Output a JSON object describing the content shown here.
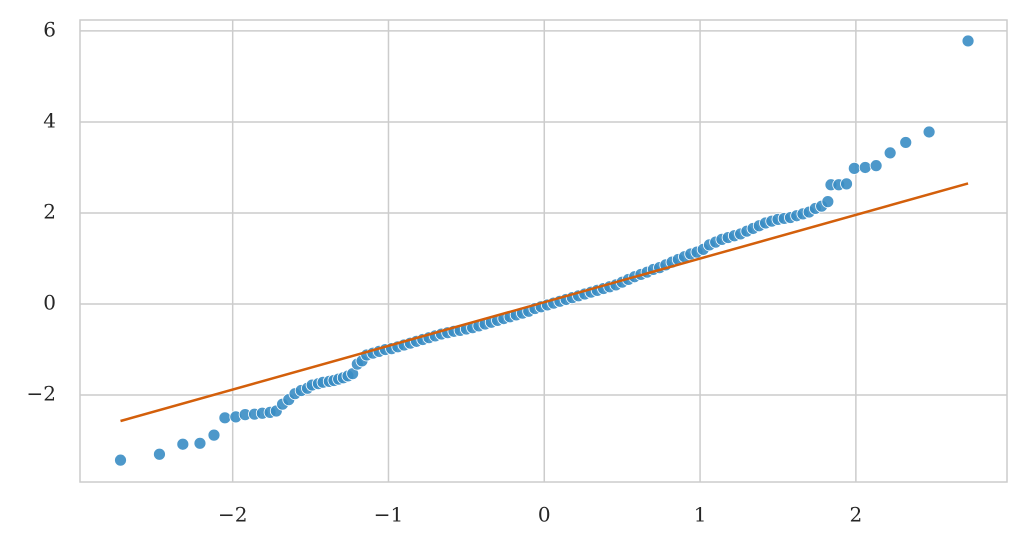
{
  "chart_data": {
    "type": "scatter",
    "xlim": [
      -2.98,
      2.97
    ],
    "ylim": [
      -3.91,
      6.24
    ],
    "xticks": [
      {
        "value": -2,
        "label": "−2"
      },
      {
        "value": -1,
        "label": "−1"
      },
      0,
      1,
      2
    ],
    "yticks": [
      {
        "value": -2,
        "label": "−2"
      },
      0,
      2,
      4,
      6
    ],
    "grid": true,
    "series": [
      {
        "type": "scatter",
        "color": "#3a8dc4",
        "x": [
          -2.72,
          -2.47,
          -2.32,
          -2.21,
          -2.12,
          -2.05,
          -1.98,
          -1.92,
          -1.86,
          -1.81,
          -1.76,
          -1.72,
          -1.68,
          -1.64,
          -1.6,
          -1.56,
          -1.52,
          -1.49,
          -1.45,
          -1.42,
          -1.38,
          -1.35,
          -1.32,
          -1.29,
          -1.26,
          -1.23,
          -1.2,
          -1.17,
          -1.14,
          -1.1,
          -1.06,
          -1.02,
          -0.98,
          -0.94,
          -0.9,
          -0.86,
          -0.82,
          -0.78,
          -0.74,
          -0.7,
          -0.66,
          -0.62,
          -0.58,
          -0.54,
          -0.5,
          -0.46,
          -0.42,
          -0.38,
          -0.34,
          -0.3,
          -0.26,
          -0.22,
          -0.18,
          -0.14,
          -0.1,
          -0.06,
          -0.02,
          0.02,
          0.06,
          0.1,
          0.14,
          0.18,
          0.22,
          0.26,
          0.3,
          0.34,
          0.38,
          0.42,
          0.46,
          0.5,
          0.54,
          0.58,
          0.62,
          0.66,
          0.7,
          0.74,
          0.78,
          0.82,
          0.86,
          0.9,
          0.94,
          0.98,
          1.02,
          1.06,
          1.1,
          1.14,
          1.18,
          1.22,
          1.26,
          1.3,
          1.34,
          1.38,
          1.42,
          1.46,
          1.5,
          1.54,
          1.58,
          1.62,
          1.66,
          1.7,
          1.74,
          1.78,
          1.82,
          1.84,
          1.89,
          1.94,
          1.99,
          2.06,
          2.13,
          2.22,
          2.32,
          2.47,
          2.72
        ],
        "values": [
          -3.43,
          -3.3,
          -3.08,
          -3.06,
          -2.88,
          -2.5,
          -2.48,
          -2.43,
          -2.42,
          -2.4,
          -2.38,
          -2.35,
          -2.2,
          -2.1,
          -1.97,
          -1.9,
          -1.85,
          -1.78,
          -1.75,
          -1.72,
          -1.7,
          -1.68,
          -1.65,
          -1.62,
          -1.58,
          -1.53,
          -1.32,
          -1.25,
          -1.12,
          -1.08,
          -1.04,
          -1.0,
          -0.98,
          -0.94,
          -0.9,
          -0.86,
          -0.82,
          -0.78,
          -0.74,
          -0.7,
          -0.66,
          -0.63,
          -0.6,
          -0.58,
          -0.55,
          -0.52,
          -0.48,
          -0.44,
          -0.4,
          -0.36,
          -0.32,
          -0.28,
          -0.24,
          -0.2,
          -0.16,
          -0.1,
          -0.06,
          -0.02,
          0.02,
          0.06,
          0.1,
          0.14,
          0.18,
          0.22,
          0.26,
          0.3,
          0.34,
          0.38,
          0.42,
          0.48,
          0.54,
          0.6,
          0.65,
          0.7,
          0.76,
          0.8,
          0.86,
          0.92,
          0.98,
          1.04,
          1.1,
          1.14,
          1.2,
          1.3,
          1.36,
          1.42,
          1.46,
          1.5,
          1.54,
          1.6,
          1.66,
          1.72,
          1.78,
          1.82,
          1.86,
          1.88,
          1.9,
          1.94,
          1.98,
          2.02,
          2.1,
          2.15,
          2.25,
          2.62,
          2.62,
          2.64,
          2.98,
          3.0,
          3.04,
          3.32,
          3.55,
          3.78,
          5.78
        ]
      },
      {
        "type": "line",
        "color": "#d35f0b",
        "x": [
          -2.72,
          2.72
        ],
        "values": [
          -2.57,
          2.65
        ]
      }
    ]
  }
}
